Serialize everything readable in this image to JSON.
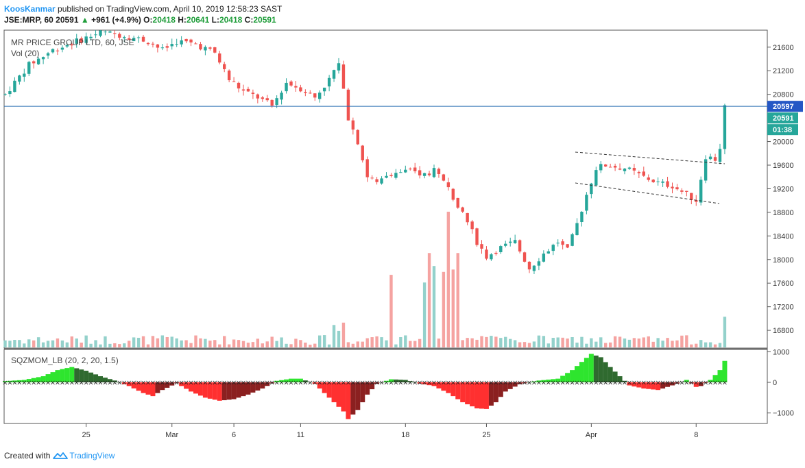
{
  "header": {
    "author": "KoosKanmar",
    "published_text": "published on TradingView.com, April 10, 2019 12:58:23 SAST"
  },
  "ohlc": {
    "symbol": "JSE:MRP, 60",
    "last": "20591",
    "arrow": "▲",
    "change": "+961 (+4.9%)",
    "o_label": "O:",
    "o": "20418",
    "h_label": "H:",
    "h": "20641",
    "l_label": "L:",
    "l": "20418",
    "c_label": "C:",
    "c": "20591"
  },
  "footer": {
    "created_with": "Created with",
    "brand": "TradingView"
  },
  "chart_data": {
    "type": "candlestick",
    "title": "MR PRICE GROUP LTD, 60, JSE",
    "volume_label": "Vol (20)",
    "indicator_label": "SQZMOM_LB (20, 2, 20, 1.5)",
    "x_tick_labels": [
      {
        "label": "25",
        "bar": 17
      },
      {
        "label": "Mar",
        "bar": 35
      },
      {
        "label": "6",
        "bar": 48
      },
      {
        "label": "11",
        "bar": 62
      },
      {
        "label": "18",
        "bar": 84
      },
      {
        "label": "25",
        "bar": 101
      },
      {
        "label": "Apr",
        "bar": 123
      },
      {
        "label": "8",
        "bar": 145
      }
    ],
    "price_axis": {
      "range": [
        16600,
        21700
      ],
      "ticks": [
        16800,
        17200,
        17600,
        18000,
        18400,
        18800,
        19200,
        19600,
        20000,
        20400,
        20800,
        21200,
        21600
      ]
    },
    "indicator_axis": {
      "range": [
        -1250,
        1000
      ],
      "ticks": [
        1000,
        0,
        -1000
      ]
    },
    "price_line": 20597,
    "price_line_label": "20597",
    "last_price_label": "20591",
    "countdown_label": "01:38",
    "colors": {
      "up": "#26a69a",
      "down": "#ef5350",
      "vol_up": "#93d1cb",
      "vol_down": "#f5a3a1",
      "price_line": "#2a6fb3",
      "mom_pos_strong": "#2ee52e",
      "mom_pos_weak": "#2f6a2f",
      "mom_neg_strong": "#ff3030",
      "mom_neg_weak": "#8b2020"
    },
    "close_path": [
      [
        0,
        20800
      ],
      [
        5,
        21300
      ],
      [
        10,
        21550
      ],
      [
        15,
        21700
      ],
      [
        20,
        21850
      ],
      [
        25,
        21800
      ],
      [
        30,
        21700
      ],
      [
        33,
        21550
      ],
      [
        36,
        21700
      ],
      [
        40,
        21650
      ],
      [
        44,
        21500
      ],
      [
        47,
        21050
      ],
      [
        50,
        20850
      ],
      [
        53,
        20750
      ],
      [
        56,
        20600
      ],
      [
        59,
        21000
      ],
      [
        62,
        20900
      ],
      [
        65,
        20750
      ],
      [
        68,
        21050
      ],
      [
        70,
        21350
      ],
      [
        72,
        20400
      ],
      [
        74,
        20000
      ],
      [
        76,
        19400
      ],
      [
        78,
        19300
      ],
      [
        80,
        19450
      ],
      [
        84,
        19500
      ],
      [
        88,
        19450
      ],
      [
        90,
        19500
      ],
      [
        93,
        19200
      ],
      [
        96,
        18800
      ],
      [
        99,
        18300
      ],
      [
        101,
        18050
      ],
      [
        104,
        18200
      ],
      [
        107,
        18300
      ],
      [
        110,
        17850
      ],
      [
        113,
        18100
      ],
      [
        116,
        18300
      ],
      [
        118,
        18150
      ],
      [
        120,
        18600
      ],
      [
        122,
        19100
      ],
      [
        124,
        19550
      ],
      [
        126,
        19600
      ],
      [
        130,
        19550
      ],
      [
        134,
        19400
      ],
      [
        137,
        19300
      ],
      [
        140,
        19250
      ],
      [
        143,
        19100
      ],
      [
        145,
        19000
      ],
      [
        147,
        19750
      ],
      [
        149,
        19700
      ],
      [
        150,
        19900
      ],
      [
        151,
        20591
      ]
    ],
    "momentum_path": [
      [
        0,
        40
      ],
      [
        4,
        80
      ],
      [
        8,
        200
      ],
      [
        11,
        400
      ],
      [
        14,
        500
      ],
      [
        17,
        380
      ],
      [
        20,
        200
      ],
      [
        23,
        60
      ],
      [
        26,
        -120
      ],
      [
        29,
        -350
      ],
      [
        31,
        -450
      ],
      [
        33,
        -250
      ],
      [
        36,
        -30
      ],
      [
        39,
        -300
      ],
      [
        42,
        -500
      ],
      [
        45,
        -600
      ],
      [
        48,
        -550
      ],
      [
        51,
        -400
      ],
      [
        54,
        -200
      ],
      [
        57,
        50
      ],
      [
        60,
        120
      ],
      [
        62,
        120
      ],
      [
        65,
        -50
      ],
      [
        68,
        -500
      ],
      [
        71,
        -950
      ],
      [
        72,
        -1200
      ],
      [
        74,
        -900
      ],
      [
        76,
        -400
      ],
      [
        78,
        -50
      ],
      [
        81,
        100
      ],
      [
        84,
        80
      ],
      [
        87,
        -40
      ],
      [
        90,
        -120
      ],
      [
        93,
        -350
      ],
      [
        96,
        -650
      ],
      [
        99,
        -850
      ],
      [
        101,
        -870
      ],
      [
        103,
        -650
      ],
      [
        105,
        -300
      ],
      [
        108,
        -60
      ],
      [
        112,
        60
      ],
      [
        116,
        120
      ],
      [
        119,
        400
      ],
      [
        122,
        800
      ],
      [
        123,
        930
      ],
      [
        125,
        820
      ],
      [
        127,
        500
      ],
      [
        129,
        200
      ],
      [
        131,
        -100
      ],
      [
        134,
        -200
      ],
      [
        137,
        -250
      ],
      [
        140,
        -100
      ],
      [
        143,
        80
      ],
      [
        145,
        -150
      ],
      [
        146,
        -120
      ],
      [
        148,
        80
      ],
      [
        150,
        400
      ],
      [
        151,
        700
      ]
    ],
    "volume_spikes": [
      [
        69,
        380
      ],
      [
        70,
        280
      ],
      [
        71,
        420
      ],
      [
        81,
        1230
      ],
      [
        88,
        1100
      ],
      [
        89,
        1600
      ],
      [
        90,
        1380
      ],
      [
        92,
        1280
      ],
      [
        93,
        2300
      ],
      [
        94,
        1320
      ],
      [
        95,
        1600
      ],
      [
        151,
        520
      ]
    ]
  }
}
